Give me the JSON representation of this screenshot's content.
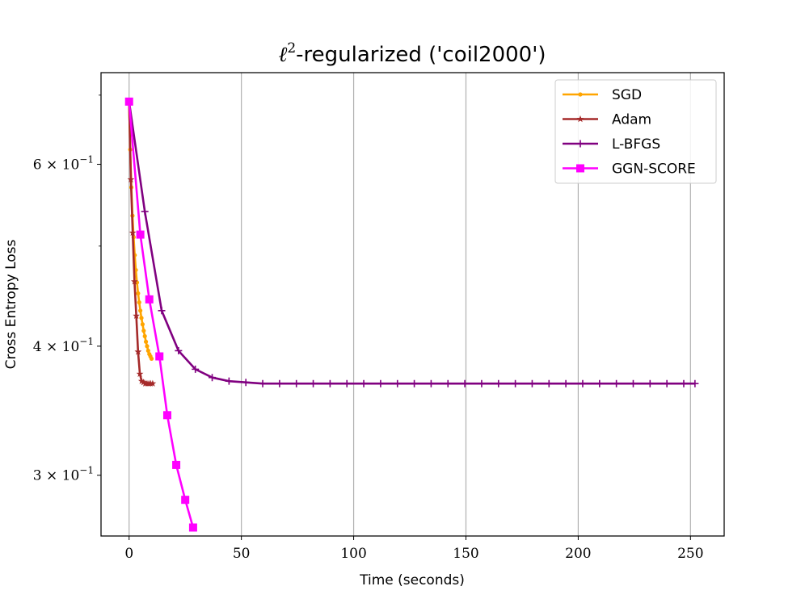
{
  "chart_data": {
    "type": "line",
    "title_main": "ℓ",
    "title_sup": "2",
    "title_rest": "-regularized ('coil2000')",
    "xlabel": "Time (seconds)",
    "ylabel": "Cross Entropy Loss",
    "yscale": "log",
    "xlim": [
      -12.5,
      265
    ],
    "ylim": [
      0.262,
      0.736
    ],
    "grid_x": true,
    "legend_position": "top-right",
    "x_ticks": [
      {
        "value": 0,
        "label": "0"
      },
      {
        "value": 50,
        "label": "50"
      },
      {
        "value": 100,
        "label": "100"
      },
      {
        "value": 150,
        "label": "150"
      },
      {
        "value": 200,
        "label": "200"
      },
      {
        "value": 250,
        "label": "250"
      }
    ],
    "y_ticks": [
      {
        "value": 0.6,
        "label_base": "6 × 10",
        "label_exp": "−1"
      },
      {
        "value": 0.4,
        "label_base": "4 × 10",
        "label_exp": "−1"
      },
      {
        "value": 0.3,
        "label_base": "3 × 10",
        "label_exp": "−1"
      }
    ],
    "y_minor_ticks": [
      0.5,
      0.7
    ],
    "series": [
      {
        "name": "SGD",
        "color": "#ffa500",
        "marker": "dot",
        "x": [
          0,
          0.5,
          1,
          1.5,
          2,
          2.5,
          3,
          3.5,
          4,
          4.5,
          5,
          5.5,
          6,
          6.5,
          7,
          7.5,
          8,
          8.5,
          9,
          9.5,
          10
        ],
        "y": [
          0.69,
          0.62,
          0.57,
          0.535,
          0.51,
          0.49,
          0.474,
          0.461,
          0.45,
          0.441,
          0.433,
          0.426,
          0.42,
          0.414,
          0.409,
          0.404,
          0.4,
          0.396,
          0.393,
          0.391,
          0.389
        ]
      },
      {
        "name": "Adam",
        "color": "#a52a2a",
        "marker": "star",
        "x": [
          0,
          0.8,
          1.6,
          2.4,
          3.2,
          4,
          4.8,
          5.6,
          6.4,
          7.2,
          8,
          8.8,
          9.6,
          10.5
        ],
        "y": [
          0.69,
          0.58,
          0.515,
          0.462,
          0.428,
          0.395,
          0.376,
          0.37,
          0.369,
          0.368,
          0.368,
          0.368,
          0.368,
          0.368
        ]
      },
      {
        "name": "L-BFGS",
        "color": "#800080",
        "marker": "plus",
        "x": [
          0,
          7,
          14.5,
          22,
          29.5,
          37,
          44.5,
          52,
          59.5,
          67,
          74.5,
          82,
          89.5,
          97,
          104.5,
          112,
          119.5,
          127,
          134.5,
          142,
          149.5,
          157,
          164.5,
          172,
          179.5,
          187,
          194.5,
          202,
          209.5,
          217,
          224.5,
          232,
          239.5,
          247,
          252
        ],
        "y": [
          0.69,
          0.54,
          0.433,
          0.396,
          0.38,
          0.373,
          0.37,
          0.369,
          0.368,
          0.368,
          0.368,
          0.368,
          0.368,
          0.368,
          0.368,
          0.368,
          0.368,
          0.368,
          0.368,
          0.368,
          0.368,
          0.368,
          0.368,
          0.368,
          0.368,
          0.368,
          0.368,
          0.368,
          0.368,
          0.368,
          0.368,
          0.368,
          0.368,
          0.368,
          0.368
        ]
      },
      {
        "name": "GGN-SCORE",
        "color": "#ff00ff",
        "marker": "square",
        "x": [
          0,
          5,
          9,
          13.5,
          17,
          21,
          25,
          28.5
        ],
        "y": [
          0.69,
          0.513,
          0.444,
          0.391,
          0.343,
          0.307,
          0.284,
          0.267
        ]
      }
    ]
  }
}
